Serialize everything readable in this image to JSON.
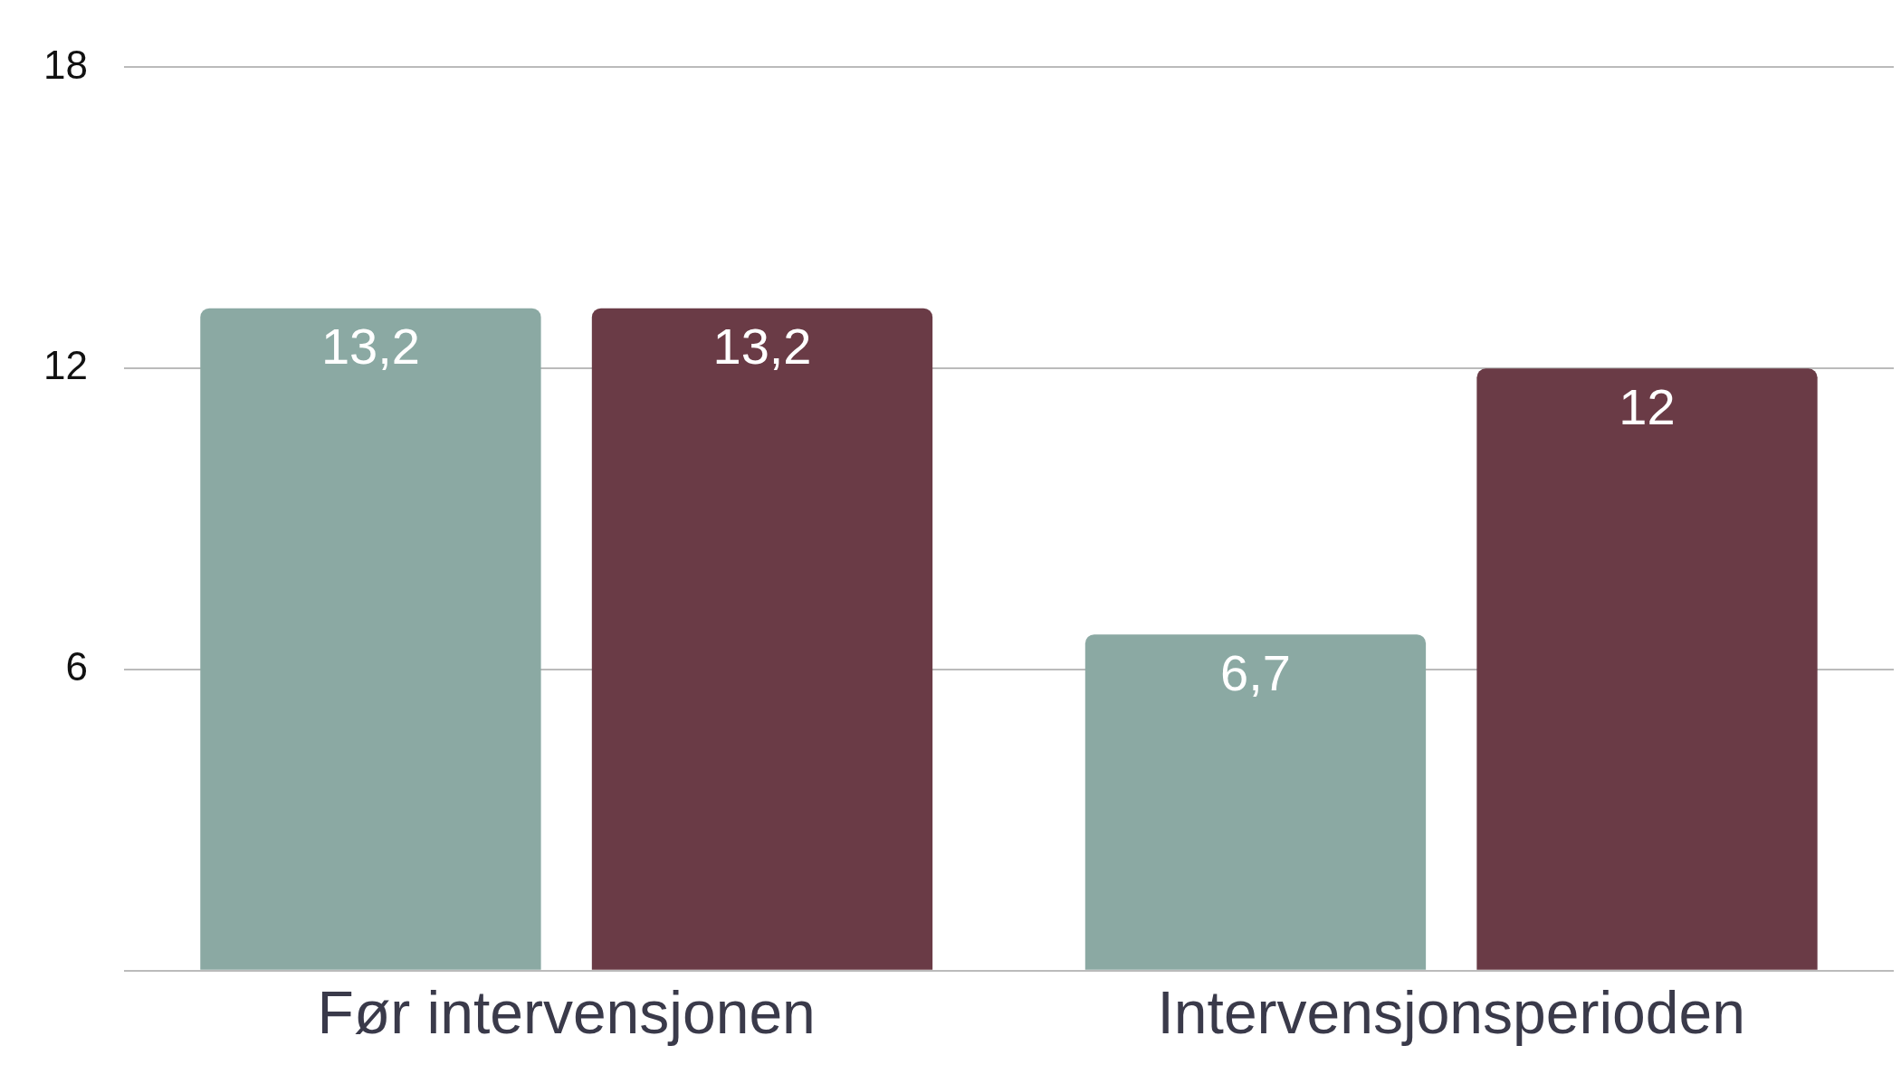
{
  "chart_data": {
    "type": "bar",
    "categories": [
      "Før intervensjonen",
      "Intervensjonsperioden"
    ],
    "series": [
      {
        "color": "#8ba9a3",
        "values": [
          13.2,
          6.7
        ],
        "value_labels": [
          "13,2",
          "6,7"
        ]
      },
      {
        "color": "#6a3b46",
        "values": [
          13.2,
          12
        ],
        "value_labels": [
          "13,2",
          "12"
        ]
      }
    ],
    "ylim": [
      0,
      18
    ],
    "yticks": [
      {
        "value": 0,
        "label": null
      },
      6,
      12,
      18
    ],
    "grid": "y",
    "legend": false
  }
}
